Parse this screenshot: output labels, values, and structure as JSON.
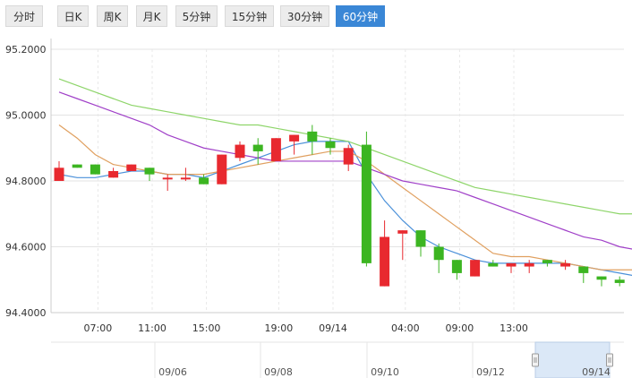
{
  "tabs": [
    {
      "label": "分时"
    },
    {
      "label": "日K"
    },
    {
      "label": "周K"
    },
    {
      "label": "月K"
    },
    {
      "label": "5分钟"
    },
    {
      "label": "15分钟"
    },
    {
      "label": "30分钟"
    },
    {
      "label": "60分钟",
      "active": true
    }
  ],
  "colors": {
    "up": "#e8292f",
    "down": "#3cb521",
    "ma_blue": "#4a90d9",
    "ma_orange": "#e0a060",
    "ma_purple": "#a040c8",
    "ma_green": "#8ed56a",
    "active_tab": "#3a87d6"
  },
  "chart_data": {
    "type": "candlestick",
    "ylim": [
      94.4,
      95.2
    ],
    "y_ticks": [
      "95.2000",
      "95.0000",
      "94.8000",
      "94.6000",
      "94.4000"
    ],
    "x_ticks": [
      {
        "label": "07:00",
        "index": 2
      },
      {
        "label": "11:00",
        "index": 5
      },
      {
        "label": "15:00",
        "index": 8
      },
      {
        "label": "19:00",
        "index": 12
      },
      {
        "label": "09/14",
        "index": 15
      },
      {
        "label": "04:00",
        "index": 19
      },
      {
        "label": "09:00",
        "index": 22
      },
      {
        "label": "13:00",
        "index": 25
      }
    ],
    "candles": [
      {
        "o": 94.8,
        "c": 94.84,
        "h": 94.86,
        "l": 94.8
      },
      {
        "o": 94.85,
        "c": 94.84,
        "h": 94.85,
        "l": 94.84
      },
      {
        "o": 94.85,
        "c": 94.82,
        "h": 94.85,
        "l": 94.82
      },
      {
        "o": 94.81,
        "c": 94.83,
        "h": 94.84,
        "l": 94.81
      },
      {
        "o": 94.83,
        "c": 94.85,
        "h": 94.85,
        "l": 94.83
      },
      {
        "o": 94.84,
        "c": 94.82,
        "h": 94.84,
        "l": 94.8
      },
      {
        "o": 94.81,
        "c": 94.81,
        "h": 94.82,
        "l": 94.77
      },
      {
        "o": 94.81,
        "c": 94.81,
        "h": 94.84,
        "l": 94.8
      },
      {
        "o": 94.81,
        "c": 94.79,
        "h": 94.82,
        "l": 94.79
      },
      {
        "o": 94.79,
        "c": 94.88,
        "h": 94.88,
        "l": 94.79
      },
      {
        "o": 94.87,
        "c": 94.91,
        "h": 94.92,
        "l": 94.86
      },
      {
        "o": 94.91,
        "c": 94.89,
        "h": 94.93,
        "l": 94.85
      },
      {
        "o": 94.86,
        "c": 94.93,
        "h": 94.93,
        "l": 94.86
      },
      {
        "o": 94.92,
        "c": 94.94,
        "h": 94.94,
        "l": 94.88
      },
      {
        "o": 94.95,
        "c": 94.92,
        "h": 94.97,
        "l": 94.88
      },
      {
        "o": 94.92,
        "c": 94.9,
        "h": 94.93,
        "l": 94.88
      },
      {
        "o": 94.85,
        "c": 94.9,
        "h": 94.91,
        "l": 94.83
      },
      {
        "o": 94.91,
        "c": 94.55,
        "h": 94.95,
        "l": 94.54
      },
      {
        "o": 94.48,
        "c": 94.63,
        "h": 94.68,
        "l": 94.48
      },
      {
        "o": 94.64,
        "c": 94.65,
        "h": 94.65,
        "l": 94.56
      },
      {
        "o": 94.65,
        "c": 94.6,
        "h": 94.65,
        "l": 94.57
      },
      {
        "o": 94.6,
        "c": 94.56,
        "h": 94.61,
        "l": 94.52
      },
      {
        "o": 94.56,
        "c": 94.52,
        "h": 94.56,
        "l": 94.5
      },
      {
        "o": 94.51,
        "c": 94.56,
        "h": 94.56,
        "l": 94.51
      },
      {
        "o": 94.55,
        "c": 94.54,
        "h": 94.56,
        "l": 94.54
      },
      {
        "o": 94.54,
        "c": 94.55,
        "h": 94.55,
        "l": 94.52
      },
      {
        "o": 94.54,
        "c": 94.55,
        "h": 94.56,
        "l": 94.52
      },
      {
        "o": 94.56,
        "c": 94.55,
        "h": 94.56,
        "l": 94.54
      },
      {
        "o": 94.54,
        "c": 94.55,
        "h": 94.56,
        "l": 94.53
      },
      {
        "o": 94.54,
        "c": 94.52,
        "h": 94.54,
        "l": 94.49
      },
      {
        "o": 94.51,
        "c": 94.5,
        "h": 94.51,
        "l": 94.48
      },
      {
        "o": 94.5,
        "c": 94.49,
        "h": 94.51,
        "l": 94.48
      },
      {
        "o": 94.49,
        "c": 94.5,
        "h": 94.5,
        "l": 94.48
      }
    ],
    "ma_lines": [
      {
        "color": "#4a90d9",
        "values": [
          94.82,
          94.81,
          94.81,
          94.82,
          94.83,
          94.83,
          94.82,
          94.82,
          94.81,
          94.83,
          94.85,
          94.87,
          94.89,
          94.91,
          94.92,
          94.92,
          94.92,
          94.82,
          94.74,
          94.68,
          94.63,
          94.6,
          94.58,
          94.56,
          94.55,
          94.55,
          94.55,
          94.55,
          94.55,
          94.54,
          94.53,
          94.52,
          94.51
        ]
      },
      {
        "color": "#e0a060",
        "values": [
          94.97,
          94.93,
          94.88,
          94.85,
          94.84,
          94.83,
          94.82,
          94.82,
          94.82,
          94.83,
          94.84,
          94.85,
          94.86,
          94.87,
          94.88,
          94.89,
          94.89,
          94.86,
          94.82,
          94.78,
          94.74,
          94.7,
          94.66,
          94.62,
          94.58,
          94.57,
          94.57,
          94.56,
          94.55,
          94.54,
          94.53,
          94.53,
          94.53
        ]
      },
      {
        "color": "#a040c8",
        "values": [
          95.07,
          95.05,
          95.03,
          95.01,
          94.99,
          94.97,
          94.94,
          94.92,
          94.9,
          94.89,
          94.88,
          94.87,
          94.86,
          94.86,
          94.86,
          94.86,
          94.86,
          94.84,
          94.82,
          94.8,
          94.79,
          94.78,
          94.77,
          94.75,
          94.73,
          94.71,
          94.69,
          94.67,
          94.65,
          94.63,
          94.62,
          94.6,
          94.59
        ]
      },
      {
        "color": "#8ed56a",
        "values": [
          95.11,
          95.09,
          95.07,
          95.05,
          95.03,
          95.02,
          95.01,
          95.0,
          94.99,
          94.98,
          94.97,
          94.97,
          94.96,
          94.95,
          94.94,
          94.93,
          94.92,
          94.9,
          94.88,
          94.86,
          94.84,
          94.82,
          94.8,
          94.78,
          94.77,
          94.76,
          94.75,
          94.74,
          94.73,
          94.72,
          94.71,
          94.7,
          94.7
        ]
      }
    ]
  },
  "navigator": {
    "date_labels": [
      "09/06",
      "09/08",
      "09/10",
      "09/12",
      "09/14"
    ]
  }
}
